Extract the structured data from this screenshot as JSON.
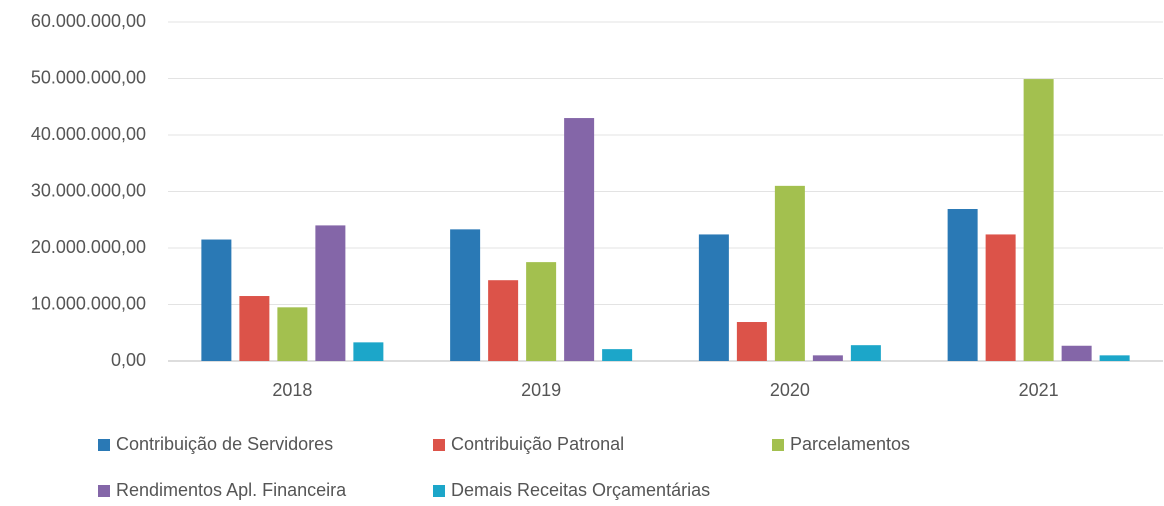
{
  "chart_data": {
    "type": "bar",
    "categories": [
      "2018",
      "2019",
      "2020",
      "2021"
    ],
    "series": [
      {
        "name": "Contribuição de Servidores",
        "color": "#2a79b5",
        "values": [
          21500000,
          23300000,
          22400000,
          26900000
        ]
      },
      {
        "name": "Contribuição Patronal",
        "color": "#dc5349",
        "values": [
          11500000,
          14300000,
          6900000,
          22400000
        ]
      },
      {
        "name": "Parcelamentos",
        "color": "#a3c04f",
        "values": [
          9500000,
          17500000,
          31000000,
          49900000
        ]
      },
      {
        "name": "Rendimentos Apl. Financeira",
        "color": "#8466a8",
        "values": [
          24000000,
          43000000,
          1000000,
          2700000
        ]
      },
      {
        "name": "Demais Receitas Orçamentárias",
        "color": "#1ca6c9",
        "values": [
          3300000,
          2100000,
          2800000,
          1000000
        ]
      }
    ],
    "ylim": [
      0,
      60000000
    ],
    "yticks": [
      {
        "value": 0,
        "label": "0,00"
      },
      {
        "value": 10000000,
        "label": "10.000.000,00"
      },
      {
        "value": 20000000,
        "label": "20.000.000,00"
      },
      {
        "value": 30000000,
        "label": "30.000.000,00"
      },
      {
        "value": 40000000,
        "label": "40.000.000,00"
      },
      {
        "value": 50000000,
        "label": "50.000.000,00"
      },
      {
        "value": 60000000,
        "label": "60.000.000,00"
      }
    ],
    "grid": true,
    "legend": "bottom"
  }
}
